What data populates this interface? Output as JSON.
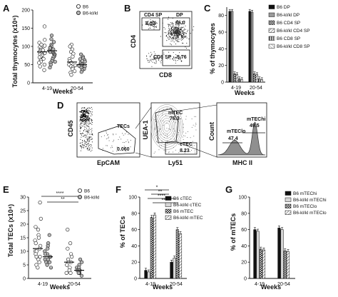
{
  "panels": {
    "A": {
      "letter": "A",
      "ylabel": "Total thymocytes (x10⁶)",
      "xlabel": "Weeks",
      "legend": [
        "B6",
        "B6-kl/kl"
      ],
      "chart_data": {
        "type": "scatter",
        "categories": [
          "4-19",
          "20-54"
        ],
        "yticks": [
          0,
          50,
          100,
          150,
          200
        ],
        "ylim": [
          0,
          200
        ],
        "series": [
          {
            "name": "B6",
            "values": [
              [
                155,
                118,
                110,
                105,
                102,
                98,
                95,
                92,
                90,
                88,
                85,
                82,
                80,
                78,
                75,
                72,
                70,
                66,
                62,
                58,
                55,
                50,
                45,
                35
              ],
              [
                105,
                100,
                92,
                85,
                80,
                72,
                65,
                60,
                55,
                50,
                48,
                45,
                42,
                38,
                32,
                28,
                22
              ]
            ]
          },
          {
            "name": "B6-kl/kl",
            "values": [
              [
                130,
                120,
                112,
                105,
                100,
                97,
                95,
                92,
                88,
                85,
                82,
                80,
                78,
                75,
                72,
                70,
                65,
                60,
                58,
                55,
                50,
                42
              ],
              [
                78,
                72,
                68,
                65,
                62,
                58,
                55,
                52,
                50,
                47,
                45,
                42,
                38,
                35,
                30
              ]
            ]
          }
        ],
        "means": [
          [
            85,
            88
          ],
          [
            57,
            50
          ]
        ]
      }
    },
    "B": {
      "letter": "B",
      "ylabel": "CD4",
      "xlabel": "CD8",
      "gates": {
        "cd4sp": "CD4 SP",
        "cd4sp_val": "8.10",
        "dp": "DP",
        "dp_val": "86.0",
        "cd8sp": "CD8 SP",
        "cd8sp_val": "3.76"
      }
    },
    "C": {
      "letter": "C",
      "ylabel": "% of thymocytes",
      "xlabel": "Weeks",
      "legend": [
        "B6 DP",
        "B6-kl/kl DP",
        "B6 CD4 SP",
        "B6-kl/kl CD4 SP",
        "B6 CD8 SP",
        "B6-kl/kl CD8 SP"
      ],
      "chart_data": {
        "type": "bar",
        "categories": [
          "4-19",
          "20-54"
        ],
        "yticks": [
          0,
          20,
          40,
          60,
          80
        ],
        "ylim": [
          0,
          90
        ],
        "series": [
          {
            "name": "B6 DP",
            "values": [
              85,
              85
            ]
          },
          {
            "name": "B6-kl/kl DP",
            "values": [
              85,
              84
            ]
          },
          {
            "name": "B6 CD4 SP",
            "values": [
              10,
              10
            ]
          },
          {
            "name": "B6-kl/kl CD4 SP",
            "values": [
              9,
              9
            ]
          },
          {
            "name": "B6 CD8 SP",
            "values": [
              4,
              4
            ]
          },
          {
            "name": "B6-kl/kl CD8 SP",
            "values": [
              3,
              3
            ]
          }
        ]
      }
    },
    "D": {
      "letter": "D",
      "p1": {
        "ylabel": "CD45",
        "xlabel": "EpCAM",
        "gate": "TECs",
        "val": "0.060"
      },
      "p2": {
        "ylabel": "UEA-1",
        "xlabel": "Ly51",
        "mtec": "mTEC",
        "mtec_val": "76.3",
        "ctec": "cTEC",
        "ctec_val": "8.23"
      },
      "p3": {
        "ylabel": "Count",
        "xlabel": "MHC II",
        "lo": "mTEClo",
        "lo_val": "47.4",
        "hi": "mTEChi",
        "hi_val": "49.5"
      }
    },
    "E": {
      "letter": "E",
      "ylabel": "Total TECs (x10⁴)",
      "xlabel": "Weeks",
      "legend": [
        "B6",
        "B6-kl/kl"
      ],
      "sig": [
        "****",
        "**"
      ],
      "chart_data": {
        "type": "scatter",
        "categories": [
          "4-19",
          "20-54"
        ],
        "yticks": [
          0,
          5,
          10,
          15,
          20,
          25,
          30
        ],
        "ylim": [
          0,
          30
        ],
        "series": [
          {
            "name": "B6",
            "values": [
              [
                28,
                22,
                19,
                18,
                16,
                15,
                14,
                13,
                12,
                11,
                10,
                10,
                9,
                8,
                8,
                7,
                6,
                5,
                4
              ],
              [
                18,
                13,
                11,
                9,
                8,
                7,
                6,
                6,
                5,
                4,
                3,
                2,
                2
              ]
            ]
          },
          {
            "name": "B6-kl/kl",
            "values": [
              [
                16,
                13,
                12,
                11,
                10,
                9,
                9,
                8,
                8,
                7,
                7,
                6,
                6,
                5,
                4
              ],
              [
                7,
                6,
                5,
                4,
                4,
                3,
                3,
                3,
                2,
                2,
                2,
                1
              ]
            ]
          }
        ],
        "means": [
          [
            11,
            8
          ],
          [
            6,
            3
          ]
        ]
      }
    },
    "F": {
      "letter": "F",
      "ylabel": "% of TECs",
      "xlabel": "Weeks",
      "legend": [
        "B6 cTEC",
        "B6-kl/kl cTEC",
        "B6 mTEC",
        "B6-kl/kl mTEC"
      ],
      "sig": [
        "*",
        "**",
        "****",
        "****"
      ],
      "chart_data": {
        "type": "bar",
        "categories": [
          "4-19",
          "20-54"
        ],
        "yticks": [
          0,
          20,
          40,
          60,
          80,
          100
        ],
        "ylim": [
          0,
          100
        ],
        "series": [
          {
            "name": "B6 cTEC",
            "values": [
              10,
              20
            ]
          },
          {
            "name": "B6-kl/kl cTEC",
            "values": [
              8,
              25
            ]
          },
          {
            "name": "B6 mTEC",
            "values": [
              75,
              60
            ]
          },
          {
            "name": "B6-kl/kl mTEC",
            "values": [
              78,
              55
            ]
          }
        ]
      }
    },
    "G": {
      "letter": "G",
      "ylabel": "% of mTECs",
      "xlabel": "Weeks",
      "legend": [
        "B6 mTEChi",
        "B6-kl/kl mTEChi",
        "B6 mTEClo",
        "B6-kl/kl mTEClo"
      ],
      "chart_data": {
        "type": "bar",
        "categories": [
          "4-19",
          "20-54"
        ],
        "yticks": [
          0,
          20,
          40,
          60,
          80,
          100
        ],
        "ylim": [
          0,
          100
        ],
        "series": [
          {
            "name": "B6 mTEChi",
            "values": [
              60,
              62
            ]
          },
          {
            "name": "B6-kl/kl mTEChi",
            "values": [
              58,
              60
            ]
          },
          {
            "name": "B6 mTEClo",
            "values": [
              36,
              34
            ]
          },
          {
            "name": "B6-kl/kl mTEClo",
            "values": [
              35,
              33
            ]
          }
        ]
      }
    }
  },
  "colors": {
    "black": "#111111",
    "gray": "#9a9a9a",
    "light": "#cfcfcf",
    "dot_gray": "#b5b5b5"
  }
}
